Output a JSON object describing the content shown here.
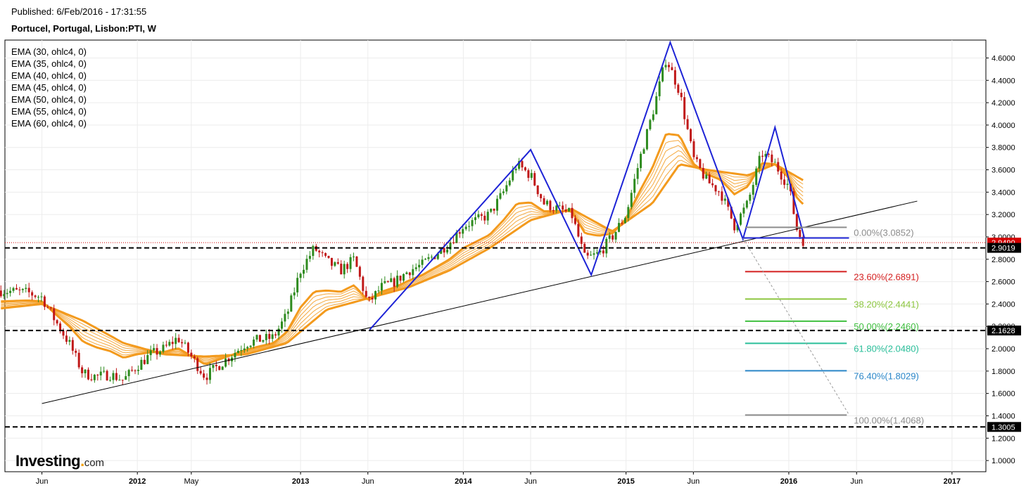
{
  "header": {
    "published": "Published: 6/Feb/2016 - 17:31:55",
    "symbol": "Portucel, Portugal, Lisbon:PTI, W"
  },
  "legend": [
    "EMA (30, ohlc4, 0)",
    "EMA (35, ohlc4, 0)",
    "EMA (40, ohlc4, 0)",
    "EMA (45, ohlc4, 0)",
    "EMA (50, ohlc4, 0)",
    "EMA (55, ohlc4, 0)",
    "EMA (60, ohlc4, 0)"
  ],
  "logo": {
    "text": "Investing",
    "suffix": "com"
  },
  "colors": {
    "up": "#2e8b1f",
    "down": "#c01818",
    "ema": "#f39a1d",
    "pattern": "#1d23d6",
    "price_tag": "#d40000",
    "level_tag": "#000000"
  },
  "chart_data": {
    "type": "candlestick",
    "title": "Portucel, Portugal, Lisbon:PTI, W",
    "timeframe": "W",
    "ylim": [
      0.9,
      4.76
    ],
    "y_ticks": [
      "4.6000",
      "4.4000",
      "4.2000",
      "4.0000",
      "3.8000",
      "3.6000",
      "3.4000",
      "3.2000",
      "3.0000",
      "2.8000",
      "2.6000",
      "2.4000",
      "2.2000",
      "2.0000",
      "1.8000",
      "1.6000",
      "1.4000",
      "1.2000",
      "1.0000"
    ],
    "x_ticks": [
      {
        "label": "Jun",
        "date": "2011-06-01",
        "bold": false
      },
      {
        "label": "2012",
        "date": "2012-01-01",
        "bold": true
      },
      {
        "label": "May",
        "date": "2012-05-01",
        "bold": false
      },
      {
        "label": "2013",
        "date": "2013-01-01",
        "bold": true
      },
      {
        "label": "Jun",
        "date": "2013-06-01",
        "bold": false
      },
      {
        "label": "2014",
        "date": "2014-01-01",
        "bold": true
      },
      {
        "label": "Jun",
        "date": "2014-06-01",
        "bold": false
      },
      {
        "label": "2015",
        "date": "2015-01-01",
        "bold": true
      },
      {
        "label": "Jun",
        "date": "2015-06-01",
        "bold": false
      },
      {
        "label": "2016",
        "date": "2016-01-01",
        "bold": true
      },
      {
        "label": "Jun",
        "date": "2016-06-01",
        "bold": false
      },
      {
        "label": "2017",
        "date": "2017-01-01",
        "bold": true
      }
    ],
    "price_path": [
      [
        "2011-03-01",
        2.52
      ],
      [
        "2011-05-01",
        2.5
      ],
      [
        "2011-06-01",
        2.46
      ],
      [
        "2011-07-01",
        2.25
      ],
      [
        "2011-08-01",
        2.05
      ],
      [
        "2011-09-01",
        1.78
      ],
      [
        "2011-10-01",
        1.75
      ],
      [
        "2011-11-01",
        1.77
      ],
      [
        "2011-12-01",
        1.72
      ],
      [
        "2012-01-01",
        1.85
      ],
      [
        "2012-02-01",
        1.95
      ],
      [
        "2012-03-01",
        2.0
      ],
      [
        "2012-04-01",
        2.1
      ],
      [
        "2012-05-01",
        1.93
      ],
      [
        "2012-06-01",
        1.75
      ],
      [
        "2012-07-01",
        1.85
      ],
      [
        "2012-08-01",
        1.95
      ],
      [
        "2012-09-01",
        2.05
      ],
      [
        "2012-10-01",
        2.08
      ],
      [
        "2012-11-01",
        2.1
      ],
      [
        "2012-12-01",
        2.3
      ],
      [
        "2013-01-01",
        2.7
      ],
      [
        "2013-02-01",
        2.9
      ],
      [
        "2013-03-01",
        2.78
      ],
      [
        "2013-04-01",
        2.7
      ],
      [
        "2013-05-01",
        2.8
      ],
      [
        "2013-06-01",
        2.4
      ],
      [
        "2013-07-01",
        2.55
      ],
      [
        "2013-08-01",
        2.6
      ],
      [
        "2013-09-01",
        2.7
      ],
      [
        "2013-10-01",
        2.75
      ],
      [
        "2013-11-01",
        2.85
      ],
      [
        "2013-12-01",
        2.95
      ],
      [
        "2014-01-01",
        3.1
      ],
      [
        "2014-02-01",
        3.15
      ],
      [
        "2014-03-01",
        3.2
      ],
      [
        "2014-04-01",
        3.4
      ],
      [
        "2014-05-01",
        3.65
      ],
      [
        "2014-06-01",
        3.55
      ],
      [
        "2014-07-01",
        3.3
      ],
      [
        "2014-08-01",
        3.25
      ],
      [
        "2014-09-01",
        3.2
      ],
      [
        "2014-10-01",
        2.8
      ],
      [
        "2014-11-01",
        2.85
      ],
      [
        "2014-12-01",
        3.0
      ],
      [
        "2015-01-01",
        3.2
      ],
      [
        "2015-02-01",
        3.7
      ],
      [
        "2015-03-01",
        4.1
      ],
      [
        "2015-04-01",
        4.6
      ],
      [
        "2015-05-01",
        4.3
      ],
      [
        "2015-06-01",
        3.7
      ],
      [
        "2015-07-01",
        3.5
      ],
      [
        "2015-08-01",
        3.4
      ],
      [
        "2015-09-01",
        3.1
      ],
      [
        "2015-10-01",
        3.3
      ],
      [
        "2015-11-01",
        3.75
      ],
      [
        "2015-12-01",
        3.65
      ],
      [
        "2016-01-01",
        3.45
      ],
      [
        "2016-01-20",
        3.05
      ],
      [
        "2016-02-05",
        2.95
      ]
    ],
    "ema_path": [
      [
        "2011-03-01",
        2.36
      ],
      [
        "2011-06-01",
        2.4
      ],
      [
        "2011-09-01",
        2.25
      ],
      [
        "2011-12-01",
        2.05
      ],
      [
        "2012-03-01",
        1.95
      ],
      [
        "2012-06-01",
        1.93
      ],
      [
        "2012-09-01",
        1.95
      ],
      [
        "2012-12-01",
        2.05
      ],
      [
        "2013-03-01",
        2.35
      ],
      [
        "2013-06-01",
        2.45
      ],
      [
        "2013-09-01",
        2.55
      ],
      [
        "2013-12-01",
        2.7
      ],
      [
        "2014-03-01",
        2.9
      ],
      [
        "2014-06-01",
        3.15
      ],
      [
        "2014-09-01",
        3.25
      ],
      [
        "2014-12-01",
        3.05
      ],
      [
        "2015-03-01",
        3.3
      ],
      [
        "2015-05-01",
        3.65
      ],
      [
        "2015-07-01",
        3.6
      ],
      [
        "2015-10-01",
        3.55
      ],
      [
        "2015-12-01",
        3.65
      ],
      [
        "2016-02-05",
        3.5
      ]
    ],
    "indicators": {
      "ema_periods": [
        30,
        35,
        40,
        45,
        50,
        55,
        60
      ],
      "ema_offsets": [
        0.18,
        0.15,
        0.12,
        0.09,
        0.06,
        0.03,
        0
      ]
    },
    "pattern_line": [
      [
        "2013-06-05",
        2.17
      ],
      [
        "2014-06-01",
        3.78
      ],
      [
        "2014-10-15",
        2.66
      ],
      [
        "2015-04-10",
        4.74
      ],
      [
        "2015-09-20",
        2.98
      ],
      [
        "2015-12-01",
        3.98
      ],
      [
        "2016-02-05",
        2.99
      ],
      [
        "2015-09-20",
        2.99
      ],
      [
        "2016-05-15",
        2.99
      ]
    ],
    "trendline": [
      [
        "2011-06-01",
        1.51
      ],
      [
        "2016-10-15",
        3.32
      ]
    ],
    "support_levels": [
      2.9019,
      2.1628,
      1.3005
    ],
    "current_price": 2.949,
    "tags": [
      {
        "label": "2.9490",
        "value": 2.949,
        "kind": "price"
      },
      {
        "label": "2.9019",
        "value": 2.9019,
        "kind": "level"
      },
      {
        "label": "2.1628",
        "value": 2.1628,
        "kind": "level"
      },
      {
        "label": "1.3005",
        "value": 1.3005,
        "kind": "level"
      }
    ],
    "fibonacci": {
      "x_start": "2015-09-25",
      "x_end": "2016-05-10",
      "levels": [
        {
          "label": "0.00%(3.0852)",
          "value": 3.0852,
          "color": "#8c8c8c"
        },
        {
          "label": "23.60%(2.6891)",
          "value": 2.6891,
          "color": "#d42020"
        },
        {
          "label": "38.20%(2.4441)",
          "value": 2.4441,
          "color": "#8cc63f"
        },
        {
          "label": "50.00%(2.2460)",
          "value": 2.246,
          "color": "#3fbf3f"
        },
        {
          "label": "61.80%(2.0480)",
          "value": 2.048,
          "color": "#2abf9a"
        },
        {
          "label": "76.40%(1.8029)",
          "value": 1.8029,
          "color": "#2a86c8"
        },
        {
          "label": "100.00%(1.4068)",
          "value": 1.4068,
          "color": "#8c8c8c"
        }
      ],
      "diagonal": [
        [
          "2015-09-20",
          2.99
        ],
        [
          "2016-05-15",
          1.41
        ]
      ]
    }
  }
}
